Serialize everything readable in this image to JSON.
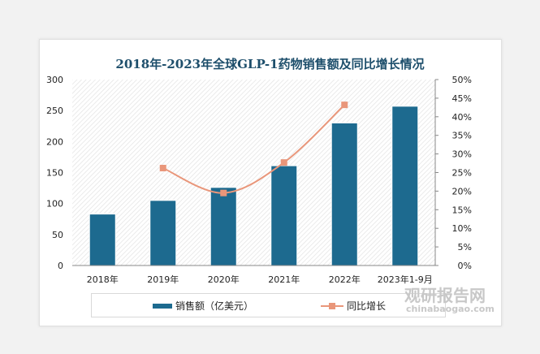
{
  "chart_data": {
    "type": "bar+line",
    "title": "2018年-2023年全球GLP-1药物销售额及同比增长情况",
    "categories": [
      "2018年",
      "2019年",
      "2020年",
      "2021年",
      "2022年",
      "2023年1-9月"
    ],
    "series": [
      {
        "name": "销售额（亿美元）",
        "type": "bar",
        "axis": "left",
        "values": [
          83,
          105,
          126,
          161,
          230,
          257
        ],
        "color": "#1d6a8f"
      },
      {
        "name": "同比增长",
        "type": "line",
        "axis": "right",
        "values": [
          null,
          26.2,
          19.5,
          27.7,
          43.2,
          null
        ],
        "color": "#e9967a"
      }
    ],
    "ylim": [
      0,
      300
    ],
    "yticks": [
      "0",
      "50",
      "100",
      "150",
      "200",
      "250",
      "300"
    ],
    "y2lim": [
      0,
      50
    ],
    "y2ticks": [
      "0%",
      "5%",
      "10%",
      "15%",
      "20%",
      "25%",
      "30%",
      "35%",
      "40%",
      "45%",
      "50%"
    ],
    "legend": "bottom"
  },
  "watermark": {
    "name": "观研报告网",
    "url": "chinabaogao.com"
  }
}
